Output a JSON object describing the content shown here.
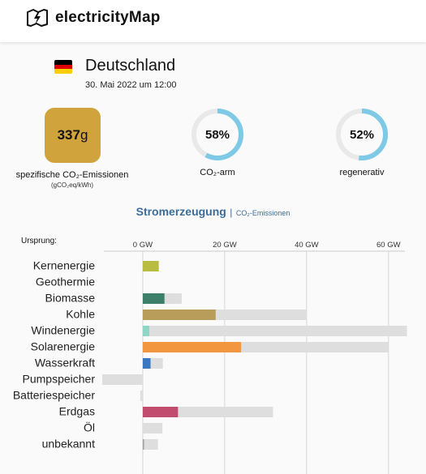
{
  "header": {
    "logo_text": "electricityMap",
    "logo_icon": "map-lightning-icon"
  },
  "zone": {
    "country": "Deutschland",
    "datetime": "30. Mai 2022 um 12:00",
    "flag_colors": [
      "#000000",
      "#dd0000",
      "#ffce00"
    ]
  },
  "co2": {
    "value": "337",
    "unit": "g",
    "label": "spezifische CO₂-Emissionen",
    "sublabel": "(gCO₂eq/kWh)",
    "color": "#d0a33c"
  },
  "gauges": [
    {
      "value": 58,
      "text": "58%",
      "label": "CO₂-arm"
    },
    {
      "value": 52,
      "text": "52%",
      "label": "regenerativ"
    }
  ],
  "gauge_colors": {
    "fill": "#7ec9e6",
    "track": "#e9e9e9"
  },
  "tabs": {
    "active": "Stromerzeugung",
    "separator": "|",
    "inactive": "CO₂-Emissionen"
  },
  "chart_data": {
    "type": "bar",
    "origin_label": "Ursprung:",
    "ticks": [
      0,
      20,
      40,
      60
    ],
    "tick_labels": [
      "0 GW",
      "20 GW",
      "40 GW",
      "60 GW"
    ],
    "xlim": [
      -9.5,
      64
    ],
    "categories": [
      "Kernenergie",
      "Geothermie",
      "Biomasse",
      "Kohle",
      "Windenergie",
      "Solarenergie",
      "Wasserkraft",
      "Pumpspeicher",
      "Batteriespeicher",
      "Erdgas",
      "Öl",
      "unbekannt"
    ],
    "production": [
      3.9,
      0,
      5.3,
      17.8,
      1.6,
      24.0,
      1.9,
      0,
      0,
      8.6,
      0,
      0.3
    ],
    "capacity": [
      0,
      0,
      9.5,
      40.0,
      64.5,
      60.0,
      4.9,
      -9.9,
      -0.6,
      31.8,
      4.8,
      3.7
    ],
    "colors": [
      "#b8bd42",
      "#ff3b3b",
      "#3e7f6a",
      "#b89c5a",
      "#8fd6c6",
      "#f29640",
      "#3b78c1",
      "#1a60a8",
      "#2c8a6f",
      "#c24c6d",
      "#8c8c8c",
      "#9f9f9f"
    ]
  }
}
